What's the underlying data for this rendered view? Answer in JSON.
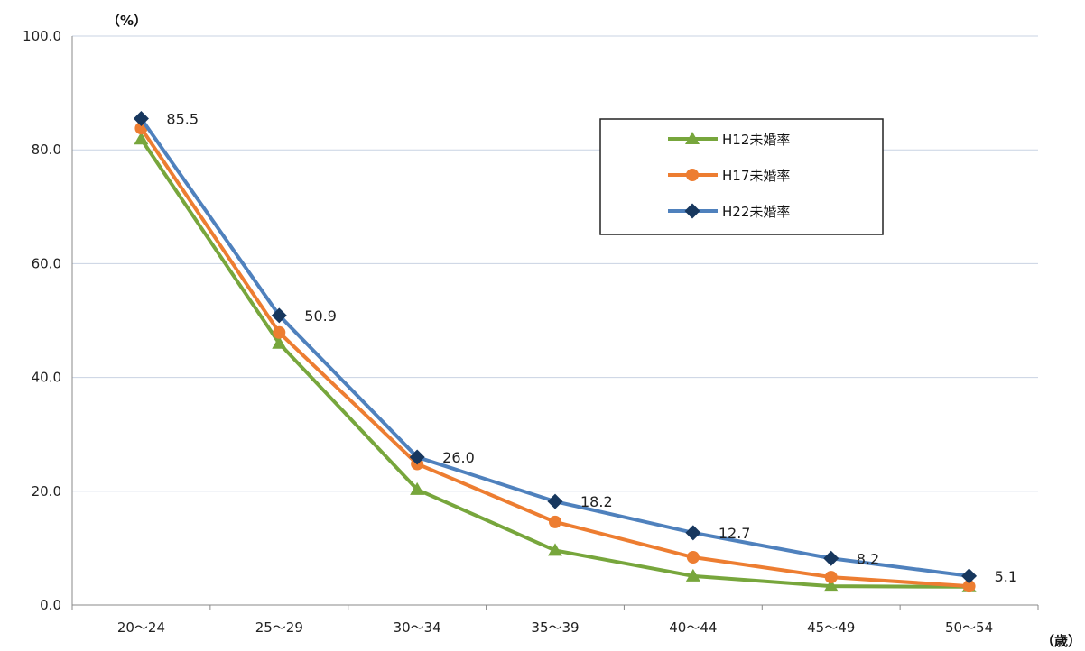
{
  "chart_data": {
    "type": "line",
    "y_unit": "（%）",
    "x_unit": "（歳）",
    "categories": [
      "20～24",
      "25～29",
      "30～34",
      "35～39",
      "40～44",
      "45～49",
      "50～54"
    ],
    "ylim": [
      0,
      100
    ],
    "yticks": [
      "0.0",
      "20.0",
      "40.0",
      "60.0",
      "80.0",
      "100.0"
    ],
    "grid": true,
    "legend_position": "top-right",
    "series": [
      {
        "name": "H12未婚率",
        "color": "#77a63c",
        "marker": "triangle",
        "values": [
          81.9,
          46.0,
          20.3,
          9.6,
          5.1,
          3.3,
          3.2
        ]
      },
      {
        "name": "H17未婚率",
        "color": "#ed7d31",
        "marker": "circle",
        "values": [
          83.8,
          47.9,
          24.8,
          14.6,
          8.4,
          4.9,
          3.3
        ]
      },
      {
        "name": "H22未婚率",
        "color": "#4f81bd",
        "marker": "diamond",
        "marker_color": "#17375e",
        "values": [
          85.5,
          50.9,
          26.0,
          18.2,
          12.7,
          8.2,
          5.1
        ]
      }
    ],
    "data_labels": [
      "85.5",
      "50.9",
      "26.0",
      "18.2",
      "12.7",
      "8.2",
      "5.1"
    ]
  }
}
